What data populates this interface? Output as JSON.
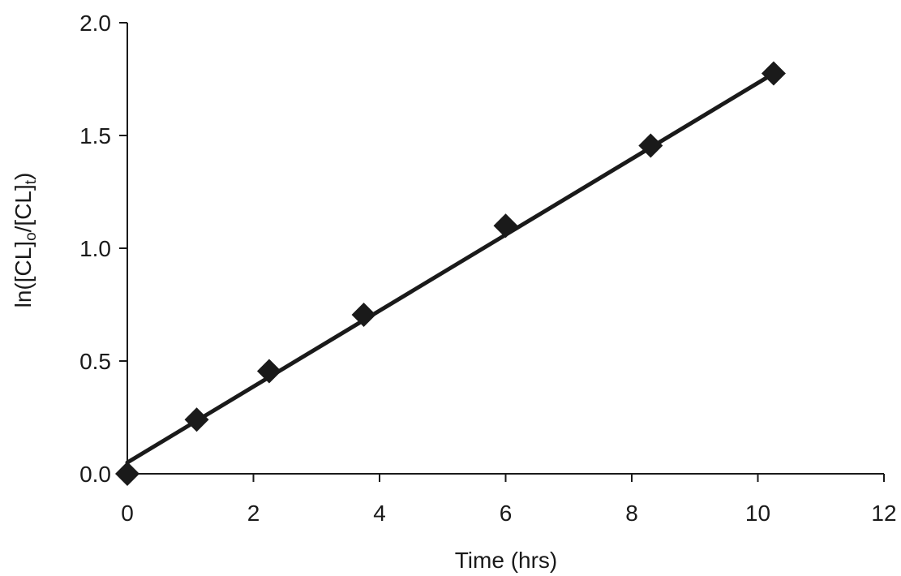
{
  "chart_data": {
    "type": "scatter",
    "title": "",
    "xlabel": "Time (hrs)",
    "ylabel": {
      "prefix": "ln([CL]",
      "sub1": "o",
      "middle": "/[CL]",
      "sub2": "t",
      "suffix": ")"
    },
    "xlim": [
      0,
      12
    ],
    "ylim": [
      0,
      2
    ],
    "x_ticks": [
      "0",
      "2",
      "4",
      "6",
      "8",
      "10",
      "12"
    ],
    "y_ticks": [
      "0.0",
      "0.5",
      "1.0",
      "1.5",
      "2.0"
    ],
    "grid": false,
    "legend": "none",
    "marker": "diamond",
    "color": "#1a1a1a",
    "series": [
      {
        "x": [
          0,
          1.1,
          2.25,
          3.75,
          6.0,
          8.3,
          10.25
        ],
        "y": [
          0.0,
          0.24,
          0.455,
          0.705,
          1.1,
          1.455,
          1.775
        ]
      }
    ],
    "fit_line": {
      "x": [
        0,
        10.25
      ],
      "y": [
        0.05,
        1.775
      ]
    }
  }
}
